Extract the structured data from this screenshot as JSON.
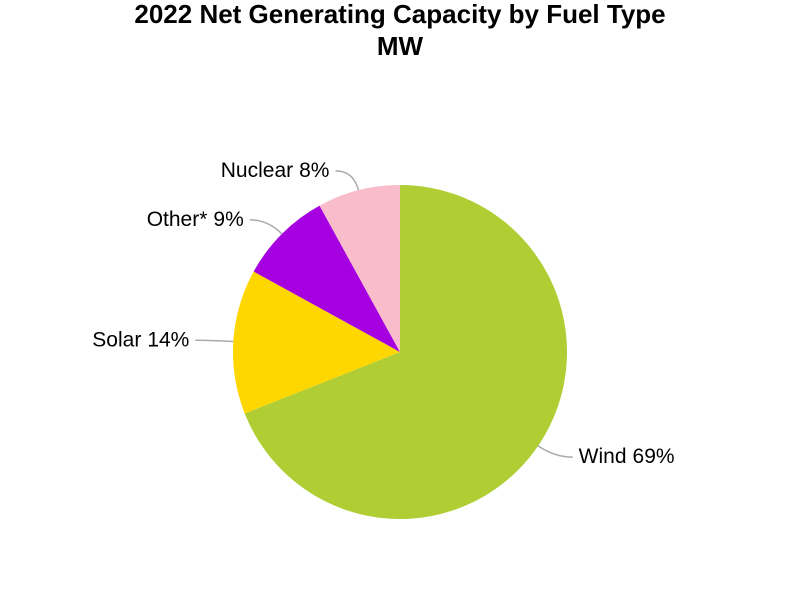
{
  "chart_data": {
    "type": "pie",
    "title": "2022 Net Generating Capacity by Fuel Type",
    "subtitle": "MW",
    "categories": [
      "Wind",
      "Solar",
      "Other*",
      "Nuclear"
    ],
    "values": [
      69,
      14,
      9,
      8
    ],
    "value_labels": [
      "69%",
      "14%",
      "9%",
      "8%"
    ],
    "colors": [
      "#b0cd33",
      "#ffd700",
      "#a600e0",
      "#f8bccb"
    ]
  }
}
